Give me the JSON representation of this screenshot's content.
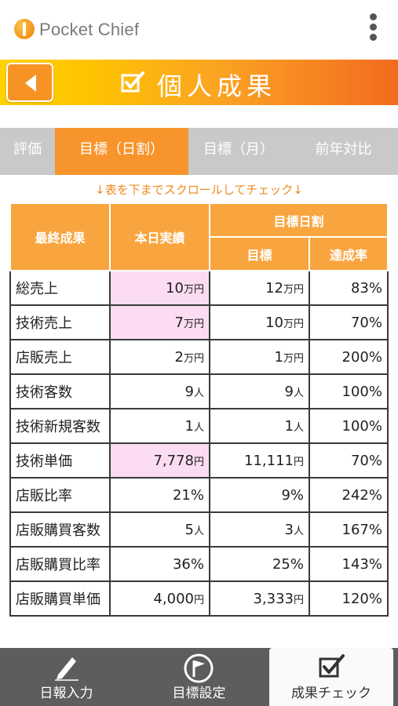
{
  "app": {
    "title": "Pocket Chief",
    "menu_icon": "kebab-menu-icon",
    "logo_icon": "pocket-chief-logo"
  },
  "banner": {
    "title": "個人成果",
    "back_icon": "back-arrow-icon",
    "title_icon": "checkbox-icon"
  },
  "tabs": [
    {
      "label": "評価",
      "active": false
    },
    {
      "label": "目標（日割）",
      "active": true
    },
    {
      "label": "目標（月）",
      "active": false
    },
    {
      "label": "前年対比",
      "active": false
    }
  ],
  "scroll_hint": "↓表を下までスクロールしてチェック↓",
  "table": {
    "headers": {
      "final_result": "最終成果",
      "today_actual": "本日実績",
      "daily_target_group": "目標日割",
      "target": "目標",
      "achievement_rate": "達成率"
    },
    "rows": [
      {
        "label": "総売上",
        "actual": "10",
        "actual_unit": "万円",
        "target": "12",
        "target_unit": "万円",
        "rate": "83%",
        "highlight": true
      },
      {
        "label": "技術売上",
        "actual": "7",
        "actual_unit": "万円",
        "target": "10",
        "target_unit": "万円",
        "rate": "70%",
        "highlight": true
      },
      {
        "label": "店販売上",
        "actual": "2",
        "actual_unit": "万円",
        "target": "1",
        "target_unit": "万円",
        "rate": "200%",
        "highlight": false
      },
      {
        "label": "技術客数",
        "actual": "9",
        "actual_unit": "人",
        "target": "9",
        "target_unit": "人",
        "rate": "100%",
        "highlight": false
      },
      {
        "label": "技術新規客数",
        "actual": "1",
        "actual_unit": "人",
        "target": "1",
        "target_unit": "人",
        "rate": "100%",
        "highlight": false
      },
      {
        "label": "技術単価",
        "actual": "7,778",
        "actual_unit": "円",
        "target": "11,111",
        "target_unit": "円",
        "rate": "70%",
        "highlight": true
      },
      {
        "label": "店販比率",
        "actual": "21%",
        "actual_unit": "",
        "target": "9%",
        "target_unit": "",
        "rate": "242%",
        "highlight": false
      },
      {
        "label": "店販購買客数",
        "actual": "5",
        "actual_unit": "人",
        "target": "3",
        "target_unit": "人",
        "rate": "167%",
        "highlight": false
      },
      {
        "label": "店販購買比率",
        "actual": "36%",
        "actual_unit": "",
        "target": "25%",
        "target_unit": "",
        "rate": "143%",
        "highlight": false
      },
      {
        "label": "店販購買単価",
        "actual": "4,000",
        "actual_unit": "円",
        "target": "3,333",
        "target_unit": "円",
        "rate": "120%",
        "highlight": false
      }
    ]
  },
  "bottom_nav": [
    {
      "label": "日報入力",
      "icon": "pencil-icon",
      "active": false
    },
    {
      "label": "目標設定",
      "icon": "flag-icon",
      "active": false
    },
    {
      "label": "成果チェック",
      "icon": "checkbox-icon",
      "active": true
    }
  ],
  "colors": {
    "accent_orange": "#f7952c",
    "header_orange": "#f9a53f",
    "tab_gray": "#c9c9c9",
    "highlight_pink": "#fbdcf2",
    "nav_gray": "#5d5d5d"
  }
}
